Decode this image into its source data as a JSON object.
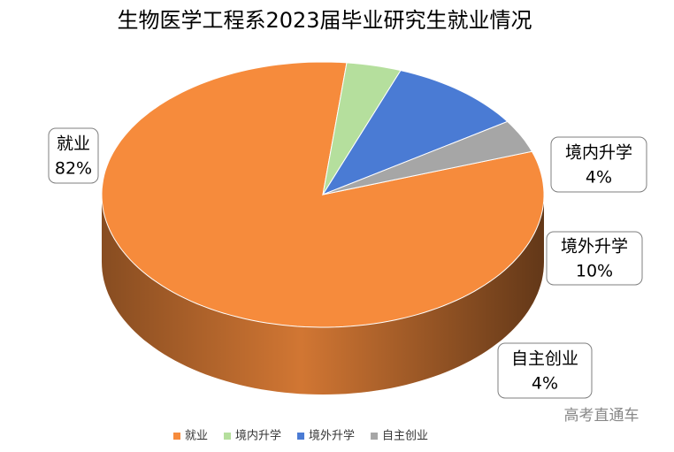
{
  "chart_data": {
    "type": "pie",
    "title": "生物医学工程系2023届毕业研究生就业情况",
    "categories": [
      "就业",
      "境内升学",
      "境外升学",
      "自主创业"
    ],
    "values": [
      82,
      4,
      10,
      4
    ],
    "value_labels": [
      "82%",
      "4%",
      "10%",
      "4%"
    ],
    "colors": [
      "#f68b3c",
      "#b5df9d",
      "#4a7bd4",
      "#a6a6a6"
    ],
    "legend": "bottom"
  },
  "watermark": "高考直通车"
}
